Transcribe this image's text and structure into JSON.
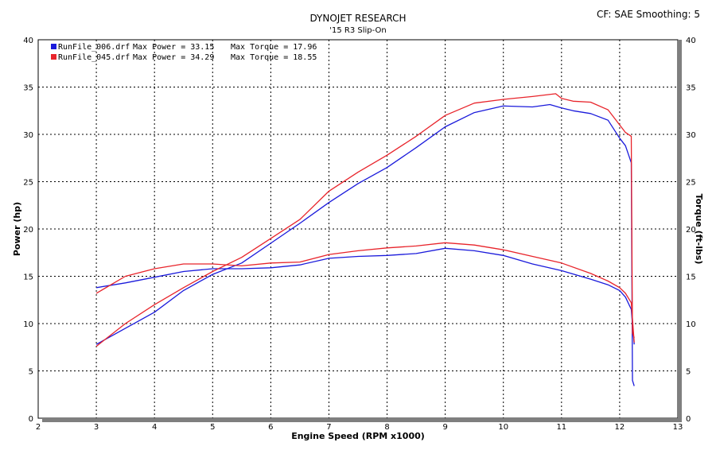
{
  "header": {
    "title": "DYNOJET RESEARCH",
    "subtitle": "'15 R3 Slip-On",
    "settings": "CF: SAE  Smoothing: 5"
  },
  "legend": [
    {
      "run": "RunFile_006.drf",
      "max_power": "Max Power = 33.15",
      "max_torque": "Max Torque = 17.96",
      "color": "#1a1adb"
    },
    {
      "run": "RunFile_045.drf",
      "max_power": "Max Power = 34.29",
      "max_torque": "Max Torque = 18.55",
      "color": "#e8242b"
    }
  ],
  "colors": {
    "run006": "#1a1adb",
    "run045": "#e8242b",
    "grid": "#000000",
    "frame": "#7f7f7f"
  },
  "chart_data": {
    "type": "line",
    "title": "DYNOJET RESEARCH",
    "subtitle": "'15 R3 Slip-On",
    "xlabel": "Engine Speed (RPM x1000)",
    "ylabel": "Power (hp)",
    "y2label": "Torque (ft-lbs)",
    "xlim": [
      2,
      13
    ],
    "ylim": [
      0,
      40
    ],
    "y2lim": [
      0,
      40
    ],
    "xticks": [
      2,
      3,
      4,
      5,
      6,
      7,
      8,
      9,
      10,
      11,
      12,
      13
    ],
    "yticks": [
      0,
      5,
      10,
      15,
      20,
      25,
      30,
      35,
      40
    ],
    "grid": true,
    "legend_position": "top-left",
    "series": [
      {
        "name": "RunFile_006.drf",
        "quantity": "power",
        "color": "#1a1adb",
        "x": [
          3.0,
          3.5,
          4.0,
          4.5,
          5.0,
          5.5,
          6.0,
          6.5,
          7.0,
          7.5,
          8.0,
          8.5,
          9.0,
          9.5,
          10.0,
          10.5,
          10.8,
          11.0,
          11.2,
          11.5,
          11.8,
          12.0,
          12.1,
          12.2,
          12.22,
          12.25
        ],
        "y": [
          7.8,
          9.5,
          11.2,
          13.5,
          15.2,
          16.4,
          18.5,
          20.6,
          22.8,
          24.8,
          26.5,
          28.6,
          30.8,
          32.3,
          33.0,
          32.9,
          33.15,
          32.8,
          32.5,
          32.2,
          31.5,
          29.6,
          28.8,
          27.0,
          4.0,
          3.4
        ]
      },
      {
        "name": "RunFile_006.drf",
        "quantity": "torque",
        "color": "#1a1adb",
        "x": [
          3.0,
          3.5,
          4.0,
          4.5,
          5.0,
          5.5,
          6.0,
          6.5,
          7.0,
          7.5,
          8.0,
          8.5,
          9.0,
          9.5,
          10.0,
          10.5,
          11.0,
          11.5,
          11.8,
          12.0,
          12.1,
          12.2,
          12.25
        ],
        "y": [
          13.8,
          14.3,
          14.9,
          15.5,
          15.8,
          15.8,
          15.9,
          16.2,
          16.9,
          17.1,
          17.2,
          17.4,
          17.96,
          17.7,
          17.2,
          16.3,
          15.6,
          14.7,
          14.1,
          13.5,
          12.8,
          11.5,
          7.8
        ]
      },
      {
        "name": "RunFile_045.drf",
        "quantity": "power",
        "color": "#e8242b",
        "x": [
          3.0,
          3.5,
          4.0,
          4.5,
          5.0,
          5.5,
          6.0,
          6.5,
          7.0,
          7.5,
          8.0,
          8.5,
          9.0,
          9.5,
          10.0,
          10.5,
          10.9,
          11.0,
          11.2,
          11.5,
          11.8,
          12.0,
          12.1,
          12.2,
          12.22,
          12.25
        ],
        "y": [
          7.6,
          10.0,
          12.0,
          13.8,
          15.5,
          17.0,
          19.0,
          21.0,
          24.0,
          26.0,
          27.8,
          29.8,
          32.0,
          33.3,
          33.7,
          34.0,
          34.29,
          33.8,
          33.5,
          33.4,
          32.6,
          31.0,
          30.2,
          29.8,
          9.0,
          8.5
        ]
      },
      {
        "name": "RunFile_045.drf",
        "quantity": "torque",
        "color": "#e8242b",
        "x": [
          3.0,
          3.5,
          4.0,
          4.5,
          5.0,
          5.5,
          6.0,
          6.5,
          7.0,
          7.5,
          8.0,
          8.5,
          9.0,
          9.5,
          10.0,
          10.5,
          11.0,
          11.5,
          11.8,
          12.0,
          12.1,
          12.2,
          12.25
        ],
        "y": [
          13.2,
          15.0,
          15.8,
          16.3,
          16.3,
          16.1,
          16.4,
          16.5,
          17.3,
          17.7,
          18.0,
          18.2,
          18.55,
          18.3,
          17.8,
          17.1,
          16.4,
          15.3,
          14.5,
          13.8,
          13.2,
          12.2,
          8.0
        ]
      }
    ]
  },
  "axes": {
    "xlabel": "Engine Speed (RPM x1000)",
    "ylabel": "Power (hp)",
    "y2label": "Torque (ft-lbs)"
  }
}
